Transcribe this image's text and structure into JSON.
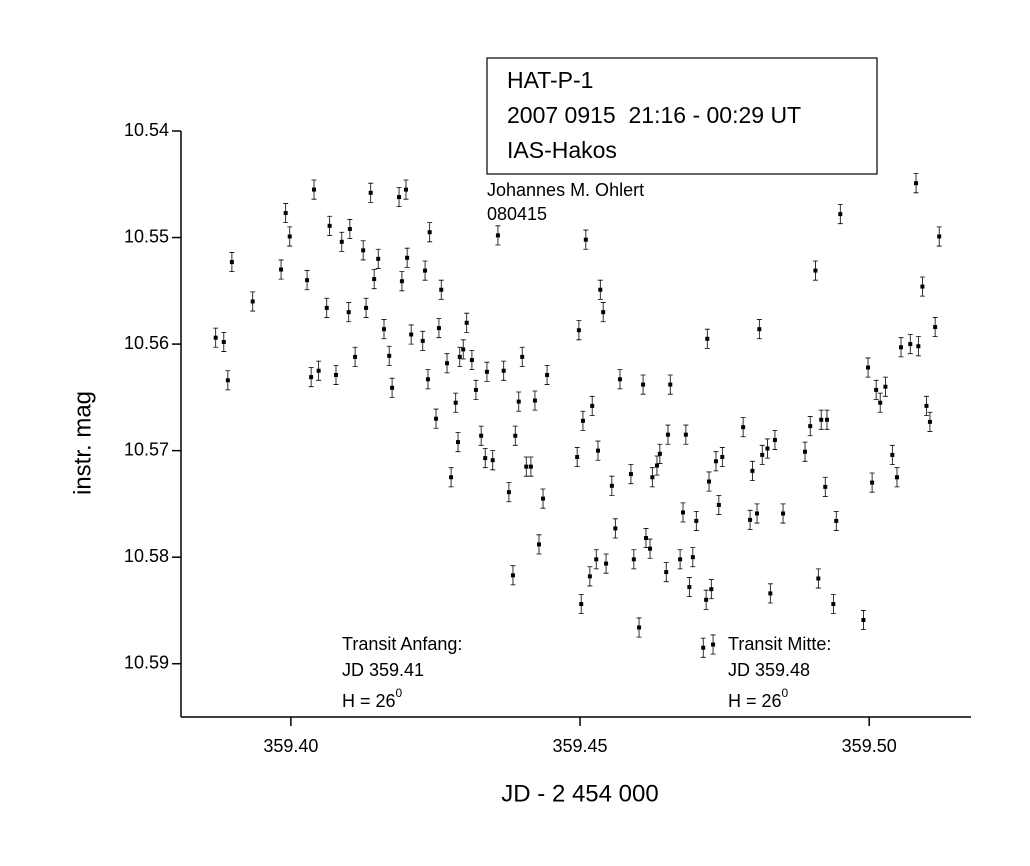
{
  "chart_data": {
    "type": "scatter",
    "title_lines": [
      "HAT-P-1",
      "2007 0915  21:16 - 00:29 UT",
      "IAS-Hakos"
    ],
    "author_lines": [
      "Johannes M. Ohlert",
      "080415"
    ],
    "x_label": "JD - 2 454 000",
    "y_label": "instr. mag",
    "xlim": [
      359.381,
      359.5176
    ],
    "ylim": [
      10.54,
      10.595
    ],
    "y_inverted": true,
    "xticks": [
      {
        "value": 359.4,
        "label": "359.40"
      },
      {
        "value": 359.45,
        "label": "359.45"
      },
      {
        "value": 359.5,
        "label": "359.50"
      }
    ],
    "yticks": [
      {
        "value": 10.54,
        "label": "10.54"
      },
      {
        "value": 10.55,
        "label": "10.55"
      },
      {
        "value": 10.56,
        "label": "10.56"
      },
      {
        "value": 10.57,
        "label": "10.57"
      },
      {
        "value": 10.58,
        "label": "10.58"
      },
      {
        "value": 10.59,
        "label": "10.59"
      }
    ],
    "yerr": 0.0009,
    "annotations": [
      {
        "lines": [
          "Transit Anfang:",
          "JD 359.41"
        ],
        "h": "H = 26",
        "sup": "0"
      },
      {
        "lines": [
          "Transit Mitte:",
          "JD 359.48"
        ],
        "h": "H = 26",
        "sup": "0"
      }
    ],
    "series": [
      {
        "color": "#000000",
        "x": [
          359.387,
          359.3884,
          359.3891,
          359.3898,
          359.3934,
          359.3983,
          359.3991,
          359.3998,
          359.4028,
          359.4035,
          359.404,
          359.4048,
          359.4062,
          359.4067,
          359.4078,
          359.4088,
          359.41,
          359.4102,
          359.4111,
          359.4125,
          359.413,
          359.4138,
          359.4144,
          359.4151,
          359.4161,
          359.417,
          359.4175,
          359.4187,
          359.4192,
          359.4199,
          359.4201,
          359.4208,
          359.4228,
          359.4232,
          359.4237,
          359.424,
          359.4251,
          359.4256,
          359.426,
          359.427,
          359.4277,
          359.4285,
          359.4289,
          359.4292,
          359.4298,
          359.4304,
          359.4313,
          359.432,
          359.4329,
          359.4336,
          359.4339,
          359.4349,
          359.4358,
          359.4368,
          359.4377,
          359.4384,
          359.4388,
          359.4394,
          359.44,
          359.4407,
          359.4415,
          359.4422,
          359.4429,
          359.4436,
          359.4443,
          359.4495,
          359.4498,
          359.4502,
          359.4505,
          359.451,
          359.4517,
          359.4521,
          359.4528,
          359.4531,
          359.4535,
          359.454,
          359.4545,
          359.4555,
          359.4561,
          359.4569,
          359.4588,
          359.4593,
          359.4602,
          359.4609,
          359.4614,
          359.4621,
          359.4625,
          359.4633,
          359.4638,
          359.4649,
          359.4652,
          359.4656,
          359.4673,
          359.4678,
          359.4683,
          359.4689,
          359.4695,
          359.4701,
          359.4713,
          359.4718,
          359.472,
          359.4723,
          359.4727,
          359.473,
          359.4735,
          359.474,
          359.4746,
          359.4782,
          359.4794,
          359.4798,
          359.4806,
          359.481,
          359.4815,
          359.4824,
          359.4829,
          359.4837,
          359.4851,
          359.4889,
          359.4898,
          359.4907,
          359.4912,
          359.4917,
          359.4924,
          359.4927,
          359.4938,
          359.4943,
          359.495,
          359.499,
          359.4998,
          359.5005,
          359.5012,
          359.5019,
          359.5028,
          359.504,
          359.5048,
          359.5055,
          359.5071,
          359.5081,
          359.5085,
          359.5092,
          359.5099,
          359.5105,
          359.5114,
          359.5121
        ],
        "y": [
          10.5594,
          10.5598,
          10.5634,
          10.5523,
          10.556,
          10.553,
          10.5477,
          10.5499,
          10.554,
          10.5631,
          10.5455,
          10.5625,
          10.5566,
          10.5489,
          10.5629,
          10.5504,
          10.557,
          10.5492,
          10.5612,
          10.5512,
          10.5566,
          10.5458,
          10.5539,
          10.552,
          10.5586,
          10.5611,
          10.5641,
          10.5462,
          10.5541,
          10.5455,
          10.5519,
          10.5591,
          10.5597,
          10.5531,
          10.5633,
          10.5495,
          10.567,
          10.5585,
          10.5549,
          10.5618,
          10.5725,
          10.5655,
          10.5692,
          10.5612,
          10.5605,
          10.558,
          10.5615,
          10.5643,
          10.5686,
          10.5707,
          10.5626,
          10.5709,
          10.5498,
          10.5625,
          10.5739,
          10.5817,
          10.5686,
          10.5654,
          10.5612,
          10.5715,
          10.5715,
          10.5653,
          10.5788,
          10.5745,
          10.5629,
          10.5706,
          10.5587,
          10.5844,
          10.5672,
          10.5502,
          10.5818,
          10.5658,
          10.5802,
          10.57,
          10.5549,
          10.557,
          10.5806,
          10.5733,
          10.5773,
          10.5633,
          10.5722,
          10.5802,
          10.5866,
          10.5638,
          10.5782,
          10.5792,
          10.5725,
          10.5714,
          10.5703,
          10.5814,
          10.5685,
          10.5638,
          10.5802,
          10.5758,
          10.5685,
          10.5828,
          10.58,
          10.5766,
          10.5885,
          10.584,
          10.5595,
          10.5729,
          10.583,
          10.5882,
          10.571,
          10.5751,
          10.5706,
          10.5678,
          10.5765,
          10.5719,
          10.5759,
          10.5586,
          10.5704,
          10.5698,
          10.5834,
          10.569,
          10.5759,
          10.5701,
          10.5677,
          10.5531,
          10.582,
          10.5671,
          10.5734,
          10.5671,
          10.5844,
          10.5766,
          10.5478,
          10.5859,
          10.5622,
          10.573,
          10.5643,
          10.5655,
          10.564,
          10.5704,
          10.5725,
          10.5603,
          10.56,
          10.5449,
          10.5602,
          10.5546,
          10.5658,
          10.5673,
          10.5584,
          10.5499
        ]
      }
    ]
  }
}
